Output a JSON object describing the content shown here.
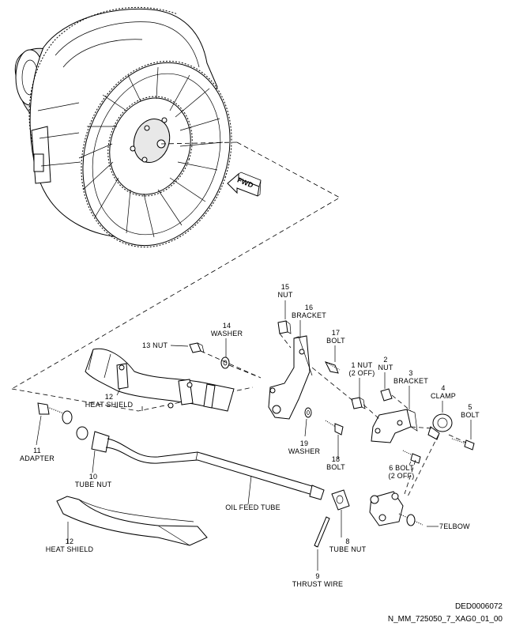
{
  "fwd_label": "FWD",
  "parts": [
    {
      "num": "15",
      "name": "NUT"
    },
    {
      "num": "16",
      "name": "BRACKET"
    },
    {
      "num": "14",
      "name": "WASHER"
    },
    {
      "num": "13",
      "name": "NUT"
    },
    {
      "num": "17",
      "name": "BOLT"
    },
    {
      "num": "1",
      "name": "NUT",
      "qty": "(2 OFF)"
    },
    {
      "num": "2",
      "name": "NUT"
    },
    {
      "num": "3",
      "name": "BRACKET"
    },
    {
      "num": "4",
      "name": "CLAMP"
    },
    {
      "num": "5",
      "name": "BOLT"
    },
    {
      "num": "12",
      "name": "HEAT SHIELD"
    },
    {
      "num": "19",
      "name": "WASHER"
    },
    {
      "num": "18",
      "name": "BOLT"
    },
    {
      "num": "6",
      "name": "BOLT",
      "qty": "(2 OFF)"
    },
    {
      "num": "11",
      "name": "ADAPTER"
    },
    {
      "num": "10",
      "name": "TUBE NUT"
    },
    {
      "num": "",
      "name": "OIL FEED TUBE"
    },
    {
      "num": "8",
      "name": "TUBE NUT"
    },
    {
      "num": "7",
      "name": "ELBOW"
    },
    {
      "num": "12",
      "name": "HEAT SHIELD"
    },
    {
      "num": "9",
      "name": "THRUST WIRE"
    }
  ],
  "footer": {
    "code": "DED0006072",
    "ref": "N_MM_725050_7_XAG0_01_00"
  }
}
